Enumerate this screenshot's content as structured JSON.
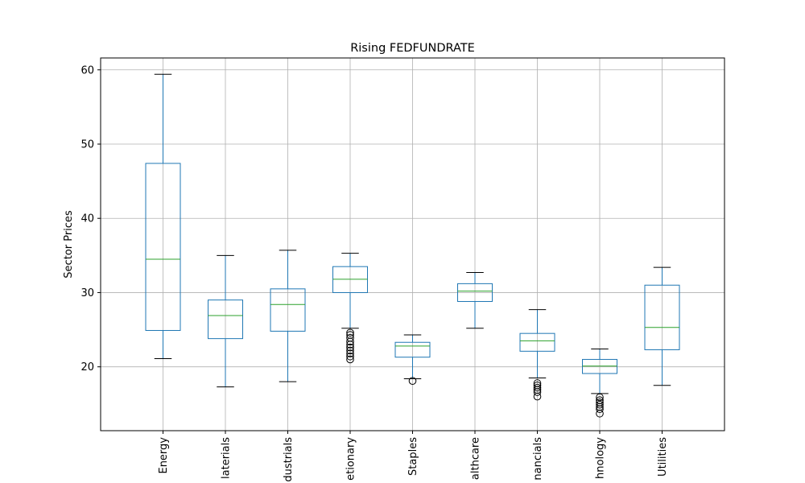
{
  "chart_data": {
    "type": "box",
    "title": "Rising FEDFUNDRATE",
    "ylabel": "Sector Prices",
    "xlabel": "",
    "ylim": [
      11.4,
      61.6
    ],
    "yticks": [
      20,
      30,
      40,
      50,
      60
    ],
    "grid": true,
    "categories": [
      "Energy",
      "Materials",
      "Industrials",
      "Discretionary",
      "Staples",
      "Healthcare",
      "Financials",
      "Technology",
      "Utilities"
    ],
    "tick_labels": [
      "Energy",
      "laterials",
      "dustrials",
      "etionary",
      "Staples",
      "althcare",
      "nancials",
      "hnology",
      "Utilities"
    ],
    "boxes": [
      {
        "whisker_low": 21.1,
        "q1": 24.9,
        "median": 34.5,
        "q3": 47.4,
        "whisker_high": 59.4,
        "outliers": []
      },
      {
        "whisker_low": 17.3,
        "q1": 23.8,
        "median": 26.9,
        "q3": 29.0,
        "whisker_high": 35.0,
        "outliers": []
      },
      {
        "whisker_low": 18.0,
        "q1": 24.8,
        "median": 28.4,
        "q3": 30.5,
        "whisker_high": 35.7,
        "outliers": []
      },
      {
        "whisker_low": 25.2,
        "q1": 30.0,
        "median": 31.8,
        "q3": 33.5,
        "whisker_high": 35.3,
        "outliers": [
          24.6,
          24.3,
          23.9,
          23.4,
          23.0,
          22.6,
          22.2,
          21.8,
          21.4,
          21.0
        ]
      },
      {
        "whisker_low": 18.4,
        "q1": 21.3,
        "median": 22.8,
        "q3": 23.3,
        "whisker_high": 24.3,
        "outliers": [
          18.1
        ]
      },
      {
        "whisker_low": 25.2,
        "q1": 28.8,
        "median": 30.2,
        "q3": 31.2,
        "whisker_high": 32.7,
        "outliers": []
      },
      {
        "whisker_low": 18.5,
        "q1": 22.1,
        "median": 23.5,
        "q3": 24.5,
        "whisker_high": 27.7,
        "outliers": [
          17.8,
          17.5,
          17.2,
          16.9,
          16.6,
          16.0
        ]
      },
      {
        "whisker_low": 16.4,
        "q1": 19.1,
        "median": 20.1,
        "q3": 21.0,
        "whisker_high": 22.4,
        "outliers": [
          15.9,
          15.5,
          15.2,
          14.9,
          14.6,
          14.3,
          13.7
        ]
      },
      {
        "whisker_low": 17.5,
        "q1": 22.3,
        "median": 25.3,
        "q3": 31.0,
        "whisker_high": 33.4,
        "outliers": []
      }
    ],
    "colors": {
      "box": "#1f77b4",
      "median": "#2ca02c",
      "whisker": "#1f77b4",
      "cap": "#000000",
      "outlier": "#000000",
      "grid": "#b0b0b0",
      "axes": "#000000"
    }
  }
}
